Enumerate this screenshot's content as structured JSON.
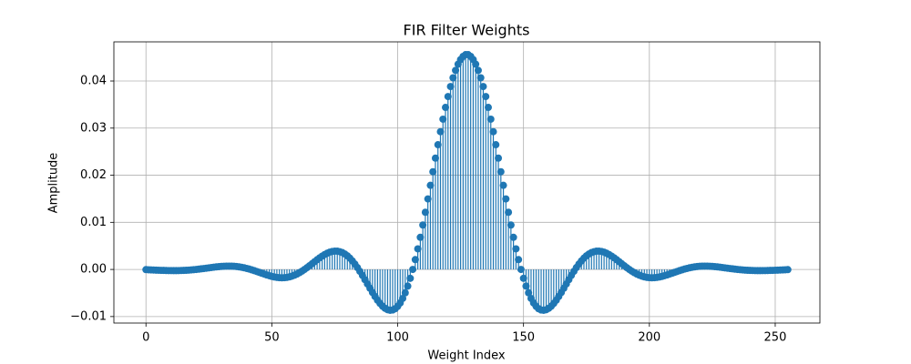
{
  "chart_data": {
    "type": "stem",
    "title": "FIR Filter Weights",
    "x_label": "Weight Index",
    "y_label": "Amplitude",
    "color": "#1f77b4",
    "grid": true,
    "xlim": [
      -12.75,
      267.75
    ],
    "ylim": [
      -0.01138,
      0.04831
    ],
    "xticks": [
      0,
      50,
      100,
      150,
      200,
      250
    ],
    "yticks": [
      {
        "value": -0.01,
        "label": "−0.01"
      },
      {
        "value": 0,
        "label": "0.00"
      },
      0.01,
      0.02,
      0.03,
      0.04
    ],
    "x": [
      0,
      1,
      2,
      3,
      4,
      5,
      6,
      7,
      8,
      9,
      10,
      11,
      12,
      13,
      14,
      15,
      16,
      17,
      18,
      19,
      20,
      21,
      22,
      23,
      24,
      25,
      26,
      27,
      28,
      29,
      30,
      31,
      32,
      33,
      34,
      35,
      36,
      37,
      38,
      39,
      40,
      41,
      42,
      43,
      44,
      45,
      46,
      47,
      48,
      49,
      50,
      51,
      52,
      53,
      54,
      55,
      56,
      57,
      58,
      59,
      60,
      61,
      62,
      63,
      64,
      65,
      66,
      67,
      68,
      69,
      70,
      71,
      72,
      73,
      74,
      75,
      76,
      77,
      78,
      79,
      80,
      81,
      82,
      83,
      84,
      85,
      86,
      87,
      88,
      89,
      90,
      91,
      92,
      93,
      94,
      95,
      96,
      97,
      98,
      99,
      100,
      101,
      102,
      103,
      104,
      105,
      106,
      107,
      108,
      109,
      110,
      111,
      112,
      113,
      114,
      115,
      116,
      117,
      118,
      119,
      120,
      121,
      122,
      123,
      124,
      125,
      126,
      127,
      128,
      129,
      130,
      131,
      132,
      133,
      134,
      135,
      136,
      137,
      138,
      139,
      140,
      141,
      142,
      143,
      144,
      145,
      146,
      147,
      148,
      149,
      150,
      151,
      152,
      153,
      154,
      155,
      156,
      157,
      158,
      159,
      160,
      161,
      162,
      163,
      164,
      165,
      166,
      167,
      168,
      169,
      170,
      171,
      172,
      173,
      174,
      175,
      176,
      177,
      178,
      179,
      180,
      181,
      182,
      183,
      184,
      185,
      186,
      187,
      188,
      189,
      190,
      191,
      192,
      193,
      194,
      195,
      196,
      197,
      198,
      199,
      200,
      201,
      202,
      203,
      204,
      205,
      206,
      207,
      208,
      209,
      210,
      211,
      212,
      213,
      214,
      215,
      216,
      217,
      218,
      219,
      220,
      221,
      222,
      223,
      224,
      225,
      226,
      227,
      228,
      229,
      230,
      231,
      232,
      233,
      234,
      235,
      236,
      237,
      238,
      239,
      240,
      241,
      242,
      243,
      244,
      245,
      246,
      247,
      248,
      249,
      250,
      251,
      252,
      253,
      254,
      255
    ],
    "values": [
      -4e-05,
      -7e-05,
      -0.0001,
      -0.00012,
      -0.00015,
      -0.00017,
      -0.00019,
      -0.00021,
      -0.00023,
      -0.00024,
      -0.00024,
      -0.00025,
      -0.00025,
      -0.00024,
      -0.00022,
      -0.0002,
      -0.00018,
      -0.00014,
      -0.0001,
      -5e-05,
      0,
      6e-05,
      0.00013,
      0.00019,
      0.00027,
      0.00034,
      0.00041,
      0.00048,
      0.00054,
      0.00059,
      0.00064,
      0.00068,
      0.0007,
      0.0007,
      0.00069,
      0.00066,
      0.00061,
      0.00055,
      0.00046,
      0.00035,
      0.00022,
      8e-05,
      -8e-05,
      -0.00025,
      -0.00043,
      -0.00062,
      -0.00081,
      -0.00099,
      -0.00117,
      -0.00133,
      -0.00148,
      -0.0016,
      -0.00169,
      -0.00175,
      -0.00177,
      -0.00175,
      -0.00169,
      -0.00158,
      -0.00142,
      -0.00122,
      -0.00098,
      -0.00069,
      -0.00036,
      0,
      0.00039,
      0.0008,
      0.00122,
      0.00164,
      0.00206,
      0.00246,
      0.00283,
      0.00316,
      0.00344,
      0.00367,
      0.00382,
      0.00389,
      0.00388,
      0.00377,
      0.00358,
      0.00328,
      0.00289,
      0.0024,
      0.00181,
      0.00114,
      0.0004,
      -0.00041,
      -0.00127,
      -0.00217,
      -0.00309,
      -0.004,
      -0.00489,
      -0.00574,
      -0.00653,
      -0.00722,
      -0.00781,
      -0.00825,
      -0.00855,
      -0.00867,
      -0.00861,
      -0.00834,
      -0.00784,
      -0.00711,
      -0.00616,
      -0.00496,
      -0.00354,
      -0.00188,
      0,
      0.00209,
      0.00437,
      0.00682,
      0.00943,
      0.01214,
      0.01497,
      0.01785,
      0.02074,
      0.02363,
      0.02647,
      0.02924,
      0.0319,
      0.03439,
      0.0367,
      0.03883,
      0.04068,
      0.04226,
      0.04357,
      0.04455,
      0.04522,
      0.0456,
      0.0456,
      0.04522,
      0.04455,
      0.04357,
      0.04226,
      0.04068,
      0.03883,
      0.0367,
      0.03439,
      0.0319,
      0.02924,
      0.02647,
      0.02363,
      0.02074,
      0.01785,
      0.01497,
      0.01214,
      0.00943,
      0.00682,
      0.00437,
      0.00209,
      0,
      -0.00188,
      -0.00354,
      -0.00496,
      -0.00616,
      -0.00711,
      -0.00784,
      -0.00834,
      -0.00861,
      -0.00867,
      -0.00855,
      -0.00825,
      -0.00781,
      -0.00722,
      -0.00653,
      -0.00574,
      -0.00489,
      -0.004,
      -0.00309,
      -0.00217,
      -0.00127,
      -0.00041,
      0.0004,
      0.00114,
      0.00181,
      0.0024,
      0.00289,
      0.00328,
      0.00358,
      0.00377,
      0.00388,
      0.00389,
      0.00382,
      0.00367,
      0.00344,
      0.00316,
      0.00283,
      0.00246,
      0.00206,
      0.00164,
      0.00122,
      0.0008,
      0.00039,
      0,
      -0.00036,
      -0.00069,
      -0.00098,
      -0.00122,
      -0.00142,
      -0.00158,
      -0.00169,
      -0.00175,
      -0.00177,
      -0.00175,
      -0.00169,
      -0.0016,
      -0.00148,
      -0.00133,
      -0.00117,
      -0.00099,
      -0.00081,
      -0.00062,
      -0.00043,
      -0.00025,
      -8e-05,
      8e-05,
      0.00022,
      0.00035,
      0.00046,
      0.00055,
      0.00061,
      0.00066,
      0.00069,
      0.0007,
      0.0007,
      0.00068,
      0.00064,
      0.00059,
      0.00054,
      0.00048,
      0.00041,
      0.00034,
      0.00027,
      0.00019,
      0.00013,
      6e-05,
      0,
      -5e-05,
      -0.0001,
      -0.00014,
      -0.00018,
      -0.0002,
      -0.00022,
      -0.00024,
      -0.00025,
      -0.00025,
      -0.00024,
      -0.00024,
      -0.00023,
      -0.00021,
      -0.00019,
      -0.00017,
      -0.00015,
      -0.00012,
      -0.0001,
      -7e-05,
      -4e-05
    ]
  }
}
